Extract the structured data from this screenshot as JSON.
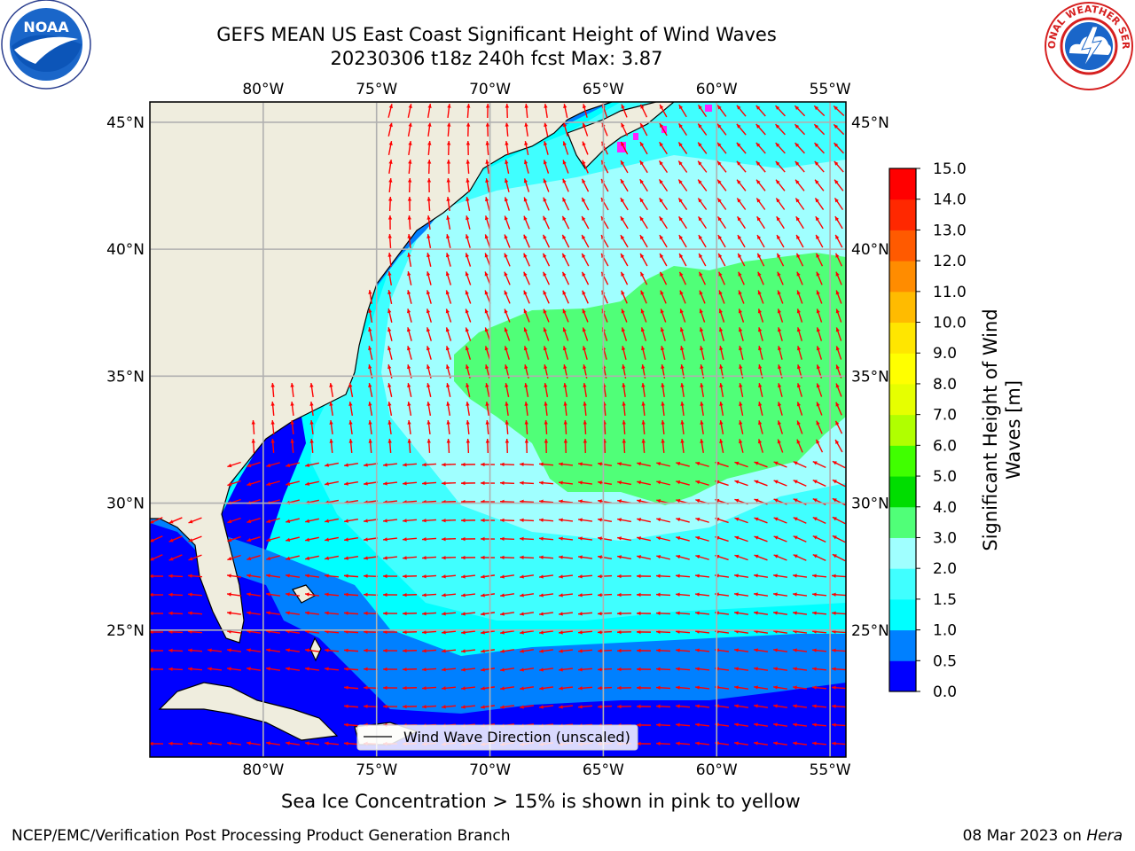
{
  "header": {
    "title_line1": "GEFS MEAN US East Coast Significant Height of Wind Waves",
    "title_line2": "20230306 t18z 240h fcst   Max: 3.87"
  },
  "logos": {
    "noaa_text": "NOAA",
    "nws_text": "NATIONAL WEATHER SERVICE"
  },
  "map": {
    "lon_labels": [
      "80°W",
      "75°W",
      "70°W",
      "65°W",
      "60°W",
      "55°W"
    ],
    "lat_labels": [
      "45°N",
      "40°N",
      "35°N",
      "30°N",
      "25°N"
    ],
    "lon_values": [
      -80,
      -75,
      -70,
      -65,
      -60,
      -55
    ],
    "lat_values": [
      45,
      40,
      35,
      30,
      25
    ],
    "extent": {
      "lon_min": -85,
      "lon_max": -54.3,
      "lat_min": 20,
      "lat_max": 45.8
    },
    "legend_label": "Wind Wave Direction (unscaled)",
    "arrow_color": "#ff0000",
    "land_color": "#efedde"
  },
  "colorbar": {
    "title": "Significant Height of Wind Waves [m]",
    "title_line1": "Significant Height of Wind",
    "title_line2": "Waves [m]",
    "ticks": [
      "0.0",
      "0.5",
      "1.0",
      "1.5",
      "2.0",
      "3.0",
      "4.0",
      "5.0",
      "6.0",
      "7.0",
      "8.0",
      "9.0",
      "10.0",
      "11.0",
      "12.0",
      "13.0",
      "14.0",
      "15.0"
    ],
    "colors": [
      "#0000ff",
      "#0080ff",
      "#00ffff",
      "#40ffff",
      "#a0ffff",
      "#50ff78",
      "#00dd00",
      "#40ff00",
      "#b0ff00",
      "#e6ff00",
      "#ffff00",
      "#ffe600",
      "#ffbb00",
      "#ff8c00",
      "#ff5a00",
      "#ff2800",
      "#ff0000"
    ]
  },
  "caption": "Sea Ice Concentration > 15% is shown in pink to yellow",
  "footer": {
    "left": "NCEP/EMC/Verification Post Processing Product Generation Branch",
    "date": "08 Mar 2023 on ",
    "machine": "Hera"
  }
}
